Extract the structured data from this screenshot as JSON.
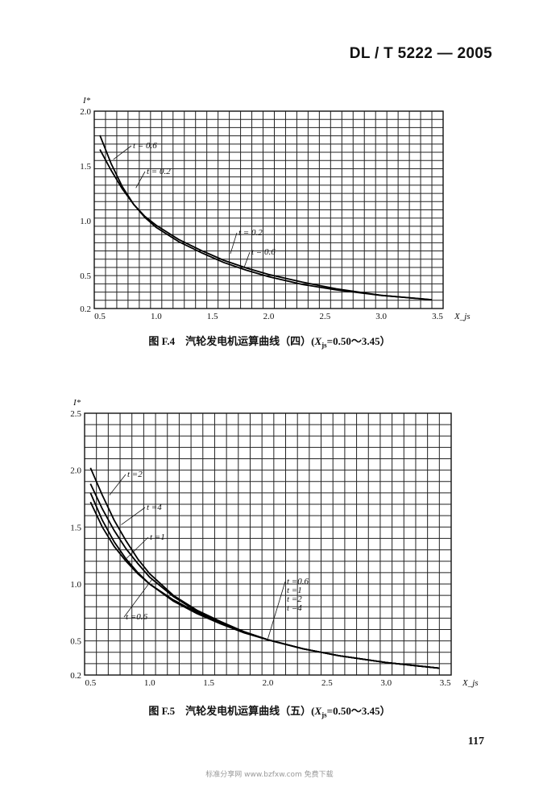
{
  "header": "DL / T 5222 — 2005",
  "page_number": "117",
  "footer_watermark": "标准分享网 www.bzfxw.com 免费下载",
  "figures": [
    {
      "caption": {
        "prefix": "图 F.4　汽轮发电机运算曲线（四）(",
        "x": "X",
        "sub": "js",
        "suffix": "=0.50～3.45）"
      },
      "ylabel": "I*",
      "xlabel": "X_js",
      "yticks": [
        "2.0",
        "1.5",
        "1.0",
        "0.5",
        "0.2"
      ],
      "xticks": [
        "0.5",
        "1.0",
        "1.5",
        "2.0",
        "2.5",
        "3.0",
        "3.5"
      ],
      "curve_labels": [
        "t = 0.6",
        "t = 0.2",
        "t = 0.2",
        "t = 0.6"
      ]
    },
    {
      "caption": {
        "prefix": "图 F.5　汽轮发电机运算曲线（五）(",
        "x": "X",
        "sub": "js",
        "suffix": "=0.50～3.45）"
      },
      "ylabel": "I*",
      "xlabel": "X_js",
      "yticks": [
        "2.5",
        "2.0",
        "1.5",
        "1.0",
        "0.5",
        "0.2"
      ],
      "xticks": [
        "0.5",
        "1.0",
        "1.5",
        "2.0",
        "2.5",
        "3.0",
        "3.5"
      ],
      "curve_labels": [
        "t =2",
        "t =4",
        "t =1",
        "t =0.6",
        "t =0.6",
        "t =1",
        "t =2",
        "t =4"
      ]
    }
  ],
  "chart_data": [
    {
      "type": "line",
      "x_range": [
        0.45,
        3.55
      ],
      "y_range": [
        0.2,
        2.0
      ],
      "grid": true,
      "series": [
        {
          "name": "t = 0.2",
          "x": [
            0.5,
            0.6,
            0.7,
            0.8,
            0.9,
            1.0,
            1.2,
            1.4,
            1.6,
            1.8,
            2.0,
            2.3,
            2.6,
            3.0,
            3.45
          ],
          "y": [
            1.65,
            1.46,
            1.29,
            1.15,
            1.04,
            0.96,
            0.83,
            0.73,
            0.64,
            0.57,
            0.51,
            0.44,
            0.38,
            0.32,
            0.28
          ]
        },
        {
          "name": "t = 0.6",
          "x": [
            0.5,
            0.6,
            0.7,
            0.8,
            0.9,
            1.0,
            1.2,
            1.4,
            1.6,
            1.8,
            2.0,
            2.3,
            2.6,
            3.0,
            3.45
          ],
          "y": [
            1.78,
            1.52,
            1.31,
            1.15,
            1.03,
            0.94,
            0.81,
            0.71,
            0.62,
            0.55,
            0.49,
            0.42,
            0.37,
            0.32,
            0.28
          ]
        }
      ]
    },
    {
      "type": "line",
      "x_range": [
        0.45,
        3.55
      ],
      "y_range": [
        0.2,
        2.5
      ],
      "grid": true,
      "series": [
        {
          "name": "t =0.6",
          "x": [
            0.5,
            0.6,
            0.7,
            0.8,
            0.9,
            1.0,
            1.2,
            1.4,
            1.6,
            1.8,
            2.0,
            2.3,
            2.6,
            3.0,
            3.45
          ],
          "y": [
            1.72,
            1.5,
            1.33,
            1.2,
            1.09,
            1.0,
            0.85,
            0.74,
            0.65,
            0.57,
            0.51,
            0.43,
            0.37,
            0.31,
            0.26
          ]
        },
        {
          "name": "t =1",
          "x": [
            0.5,
            0.6,
            0.7,
            0.8,
            0.9,
            1.0,
            1.2,
            1.4,
            1.6,
            1.8,
            2.0,
            2.3,
            2.6,
            3.0,
            3.45
          ],
          "y": [
            1.8,
            1.56,
            1.37,
            1.22,
            1.1,
            1.0,
            0.86,
            0.75,
            0.66,
            0.58,
            0.51,
            0.43,
            0.37,
            0.31,
            0.26
          ]
        },
        {
          "name": "t =4",
          "x": [
            0.5,
            0.6,
            0.7,
            0.8,
            0.9,
            1.0,
            1.2,
            1.4,
            1.6,
            1.8,
            2.0,
            2.3,
            2.6,
            3.0,
            3.45
          ],
          "y": [
            1.88,
            1.66,
            1.47,
            1.31,
            1.18,
            1.06,
            0.89,
            0.76,
            0.66,
            0.58,
            0.51,
            0.43,
            0.37,
            0.31,
            0.26
          ]
        },
        {
          "name": "t =2",
          "x": [
            0.5,
            0.6,
            0.7,
            0.8,
            0.9,
            1.0,
            1.2,
            1.4,
            1.6,
            1.8,
            2.0,
            2.3,
            2.6,
            3.0,
            3.45
          ],
          "y": [
            2.02,
            1.78,
            1.56,
            1.38,
            1.22,
            1.09,
            0.9,
            0.77,
            0.67,
            0.58,
            0.51,
            0.43,
            0.37,
            0.31,
            0.26
          ]
        }
      ]
    }
  ]
}
